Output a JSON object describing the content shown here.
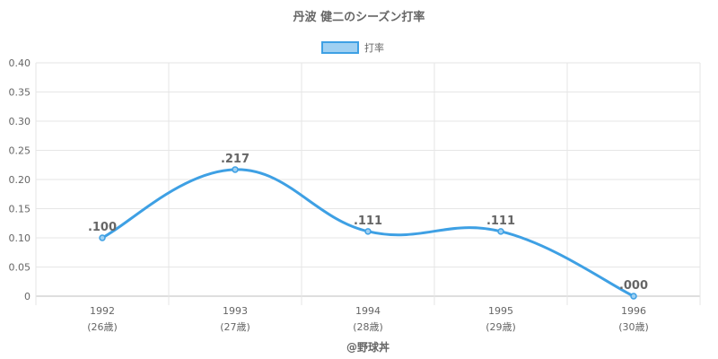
{
  "chart_data": {
    "type": "line",
    "title": "丹波 健二のシーズン打率",
    "categories": [
      "1992",
      "1993",
      "1994",
      "1995",
      "1996"
    ],
    "sub_labels": [
      "(26歳)",
      "(27歳)",
      "(28歳)",
      "(29歳)",
      "(30歳)"
    ],
    "series": [
      {
        "name": "打率",
        "values": [
          0.1,
          0.217,
          0.111,
          0.111,
          0.0
        ],
        "data_labels": [
          ".100",
          ".217",
          ".111",
          ".111",
          ".000"
        ],
        "color": "#3ea0e4",
        "fill_color": "#9fd0f2"
      }
    ],
    "ylim": [
      0,
      0.4
    ],
    "y_ticks": [
      "0",
      "0.05",
      "0.10",
      "0.15",
      "0.20",
      "0.25",
      "0.30",
      "0.35",
      "0.40"
    ],
    "legend_position": "top",
    "grid": true
  },
  "footer": "@野球丼"
}
